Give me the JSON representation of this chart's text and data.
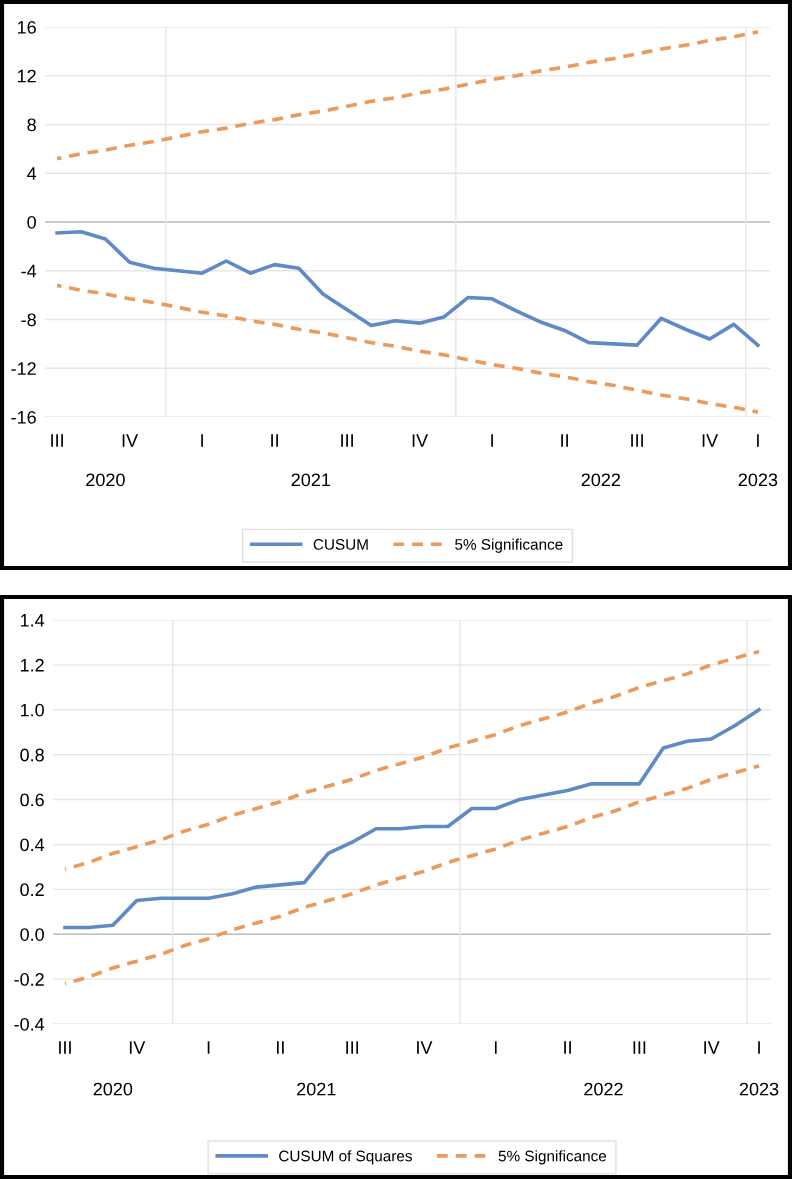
{
  "chart_data": [
    {
      "type": "line",
      "categories": [
        "III",
        null,
        null,
        "IV",
        null,
        null,
        "I",
        null,
        null,
        "II",
        null,
        null,
        "III",
        null,
        null,
        "IV",
        null,
        null,
        "I",
        null,
        null,
        "II",
        null,
        null,
        "III",
        null,
        null,
        "IV",
        null,
        "I"
      ],
      "series": [
        {
          "name": "CUSUM",
          "color": "#5f8ac6",
          "line_style": "solid",
          "values": [
            -0.9,
            -0.8,
            -1.4,
            -3.3,
            -3.8,
            -4.0,
            -4.2,
            -3.2,
            -4.2,
            -3.5,
            -3.8,
            -5.9,
            -7.2,
            -8.5,
            -8.1,
            -8.3,
            -7.8,
            -6.2,
            -6.3,
            -7.3,
            -8.2,
            -8.9,
            -9.9,
            -10.0,
            -10.1,
            -7.9,
            -8.8,
            -9.6,
            -8.4,
            -10.1
          ]
        },
        {
          "name": "5% Significance",
          "color": "#eb9a5c",
          "line_style": "dashed",
          "values": [
            5.2,
            5.6,
            5.9,
            6.3,
            6.6,
            7.0,
            7.4,
            7.7,
            8.1,
            8.4,
            8.8,
            9.1,
            9.5,
            9.9,
            10.2,
            10.6,
            10.9,
            11.3,
            11.7,
            12.0,
            12.4,
            12.7,
            13.1,
            13.4,
            13.8,
            14.2,
            14.5,
            14.9,
            15.2,
            15.6
          ]
        },
        {
          "color": "#eb9a5c",
          "line_style": "dashed",
          "values": [
            -5.2,
            -5.6,
            -5.9,
            -6.3,
            -6.6,
            -7.0,
            -7.4,
            -7.7,
            -8.1,
            -8.4,
            -8.8,
            -9.1,
            -9.5,
            -9.9,
            -10.2,
            -10.6,
            -10.9,
            -11.3,
            -11.7,
            -12.0,
            -12.4,
            -12.7,
            -13.1,
            -13.4,
            -13.8,
            -14.2,
            -14.5,
            -14.9,
            -15.2,
            -15.6
          ]
        }
      ],
      "ylim": [
        -16,
        16
      ],
      "yticks": [
        -16,
        -12,
        -8,
        -4,
        0,
        4,
        8,
        12,
        16
      ],
      "grid": "y",
      "legend": "bottom",
      "annotations": [
        "2020",
        "2021",
        "2022",
        "2023"
      ]
    },
    {
      "type": "line",
      "categories": [
        "III",
        null,
        null,
        "IV",
        null,
        null,
        "I",
        null,
        null,
        "II",
        null,
        null,
        "III",
        null,
        null,
        "IV",
        null,
        null,
        "I",
        null,
        null,
        "II",
        null,
        null,
        "III",
        null,
        null,
        "IV",
        null,
        "I"
      ],
      "series": [
        {
          "name": "CUSUM of Squares",
          "color": "#5f8ac6",
          "line_style": "solid",
          "values": [
            0.03,
            0.03,
            0.04,
            0.15,
            0.16,
            0.16,
            0.16,
            0.18,
            0.21,
            0.22,
            0.23,
            0.36,
            0.41,
            0.47,
            0.47,
            0.48,
            0.48,
            0.56,
            0.56,
            0.6,
            0.62,
            0.64,
            0.67,
            0.67,
            0.67,
            0.83,
            0.86,
            0.87,
            0.93,
            1.0
          ]
        },
        {
          "name": "5% Significance",
          "color": "#eb9a5c",
          "line_style": "dashed",
          "values": [
            0.29,
            0.32,
            0.36,
            0.39,
            0.42,
            0.46,
            0.49,
            0.53,
            0.56,
            0.59,
            0.63,
            0.66,
            0.69,
            0.73,
            0.76,
            0.79,
            0.83,
            0.86,
            0.89,
            0.93,
            0.96,
            0.99,
            1.03,
            1.06,
            1.1,
            1.13,
            1.16,
            1.2,
            1.23,
            1.26
          ]
        },
        {
          "color": "#eb9a5c",
          "line_style": "dashed",
          "values": [
            -0.22,
            -0.19,
            -0.15,
            -0.12,
            -0.09,
            -0.05,
            -0.02,
            0.02,
            0.05,
            0.08,
            0.12,
            0.15,
            0.18,
            0.22,
            0.25,
            0.28,
            0.32,
            0.35,
            0.38,
            0.42,
            0.45,
            0.48,
            0.52,
            0.55,
            0.59,
            0.62,
            0.65,
            0.69,
            0.72,
            0.75
          ]
        }
      ],
      "ylim": [
        -0.4,
        1.4
      ],
      "yticks": [
        {
          "value": -0.4,
          "label": "-0.4"
        },
        {
          "value": -0.2,
          "label": "-0.2"
        },
        {
          "value": 0,
          "label": "0.0"
        },
        {
          "value": 0.2,
          "label": "0.2"
        },
        {
          "value": 0.4,
          "label": "0.4"
        },
        {
          "value": 0.6,
          "label": "0.6"
        },
        {
          "value": 0.8,
          "label": "0.8"
        },
        {
          "value": 1.0,
          "label": "1.0"
        },
        {
          "value": 1.2,
          "label": "1.2"
        },
        {
          "value": 1.4,
          "label": "1.4"
        }
      ],
      "grid": "y",
      "legend": "bottom",
      "annotations": [
        "2020",
        "2021",
        "2022",
        "2023"
      ]
    }
  ]
}
